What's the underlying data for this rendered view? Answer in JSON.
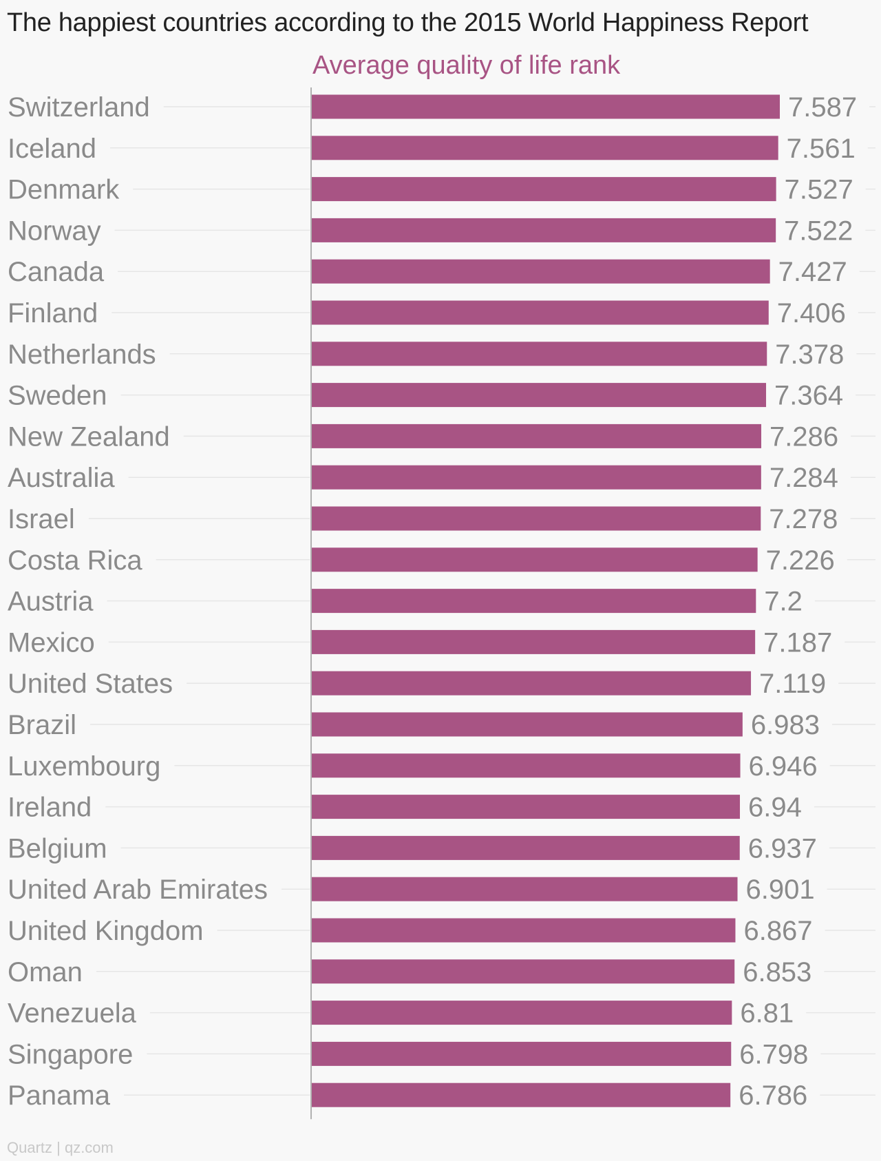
{
  "chart_data": {
    "type": "bar",
    "orientation": "horizontal",
    "title": "The happiest countries according to the 2015 World Happiness Report",
    "series": [
      {
        "name": "Average quality of life rank",
        "color": "#a85484",
        "values": [
          7.587,
          7.561,
          7.527,
          7.522,
          7.427,
          7.406,
          7.378,
          7.364,
          7.286,
          7.284,
          7.278,
          7.226,
          7.2,
          7.187,
          7.119,
          6.983,
          6.946,
          6.94,
          6.937,
          6.901,
          6.867,
          6.853,
          6.81,
          6.798,
          6.786
        ]
      }
    ],
    "categories": [
      "Switzerland",
      "Iceland",
      "Denmark",
      "Norway",
      "Canada",
      "Finland",
      "Netherlands",
      "Sweden",
      "New Zealand",
      "Australia",
      "Israel",
      "Costa Rica",
      "Austria",
      "Mexico",
      "United States",
      "Brazil",
      "Luxembourg",
      "Ireland",
      "Belgium",
      "United Arab Emirates",
      "United Kingdom",
      "Oman",
      "Venezuela",
      "Singapore",
      "Panama"
    ],
    "value_labels": [
      "7.587",
      "7.561",
      "7.527",
      "7.522",
      "7.427",
      "7.406",
      "7.378",
      "7.364",
      "7.286",
      "7.284",
      "7.278",
      "7.226",
      "7.2",
      "7.187",
      "7.119",
      "6.983",
      "6.946",
      "6.94",
      "6.937",
      "6.901",
      "6.867",
      "6.853",
      "6.81",
      "6.798",
      "6.786"
    ],
    "xlim": [
      0,
      7.587
    ],
    "grid": false,
    "legend": "top-center"
  },
  "footer": {
    "source": "Quartz | qz.com"
  },
  "colors": {
    "bar": "#a85484",
    "category_label": "#8a8a8a",
    "value_label": "#8a8a8a",
    "leader_line": "#e6e6e6",
    "axis_line": "#999999",
    "title": "#222222",
    "footer": "#c8c8c8"
  }
}
